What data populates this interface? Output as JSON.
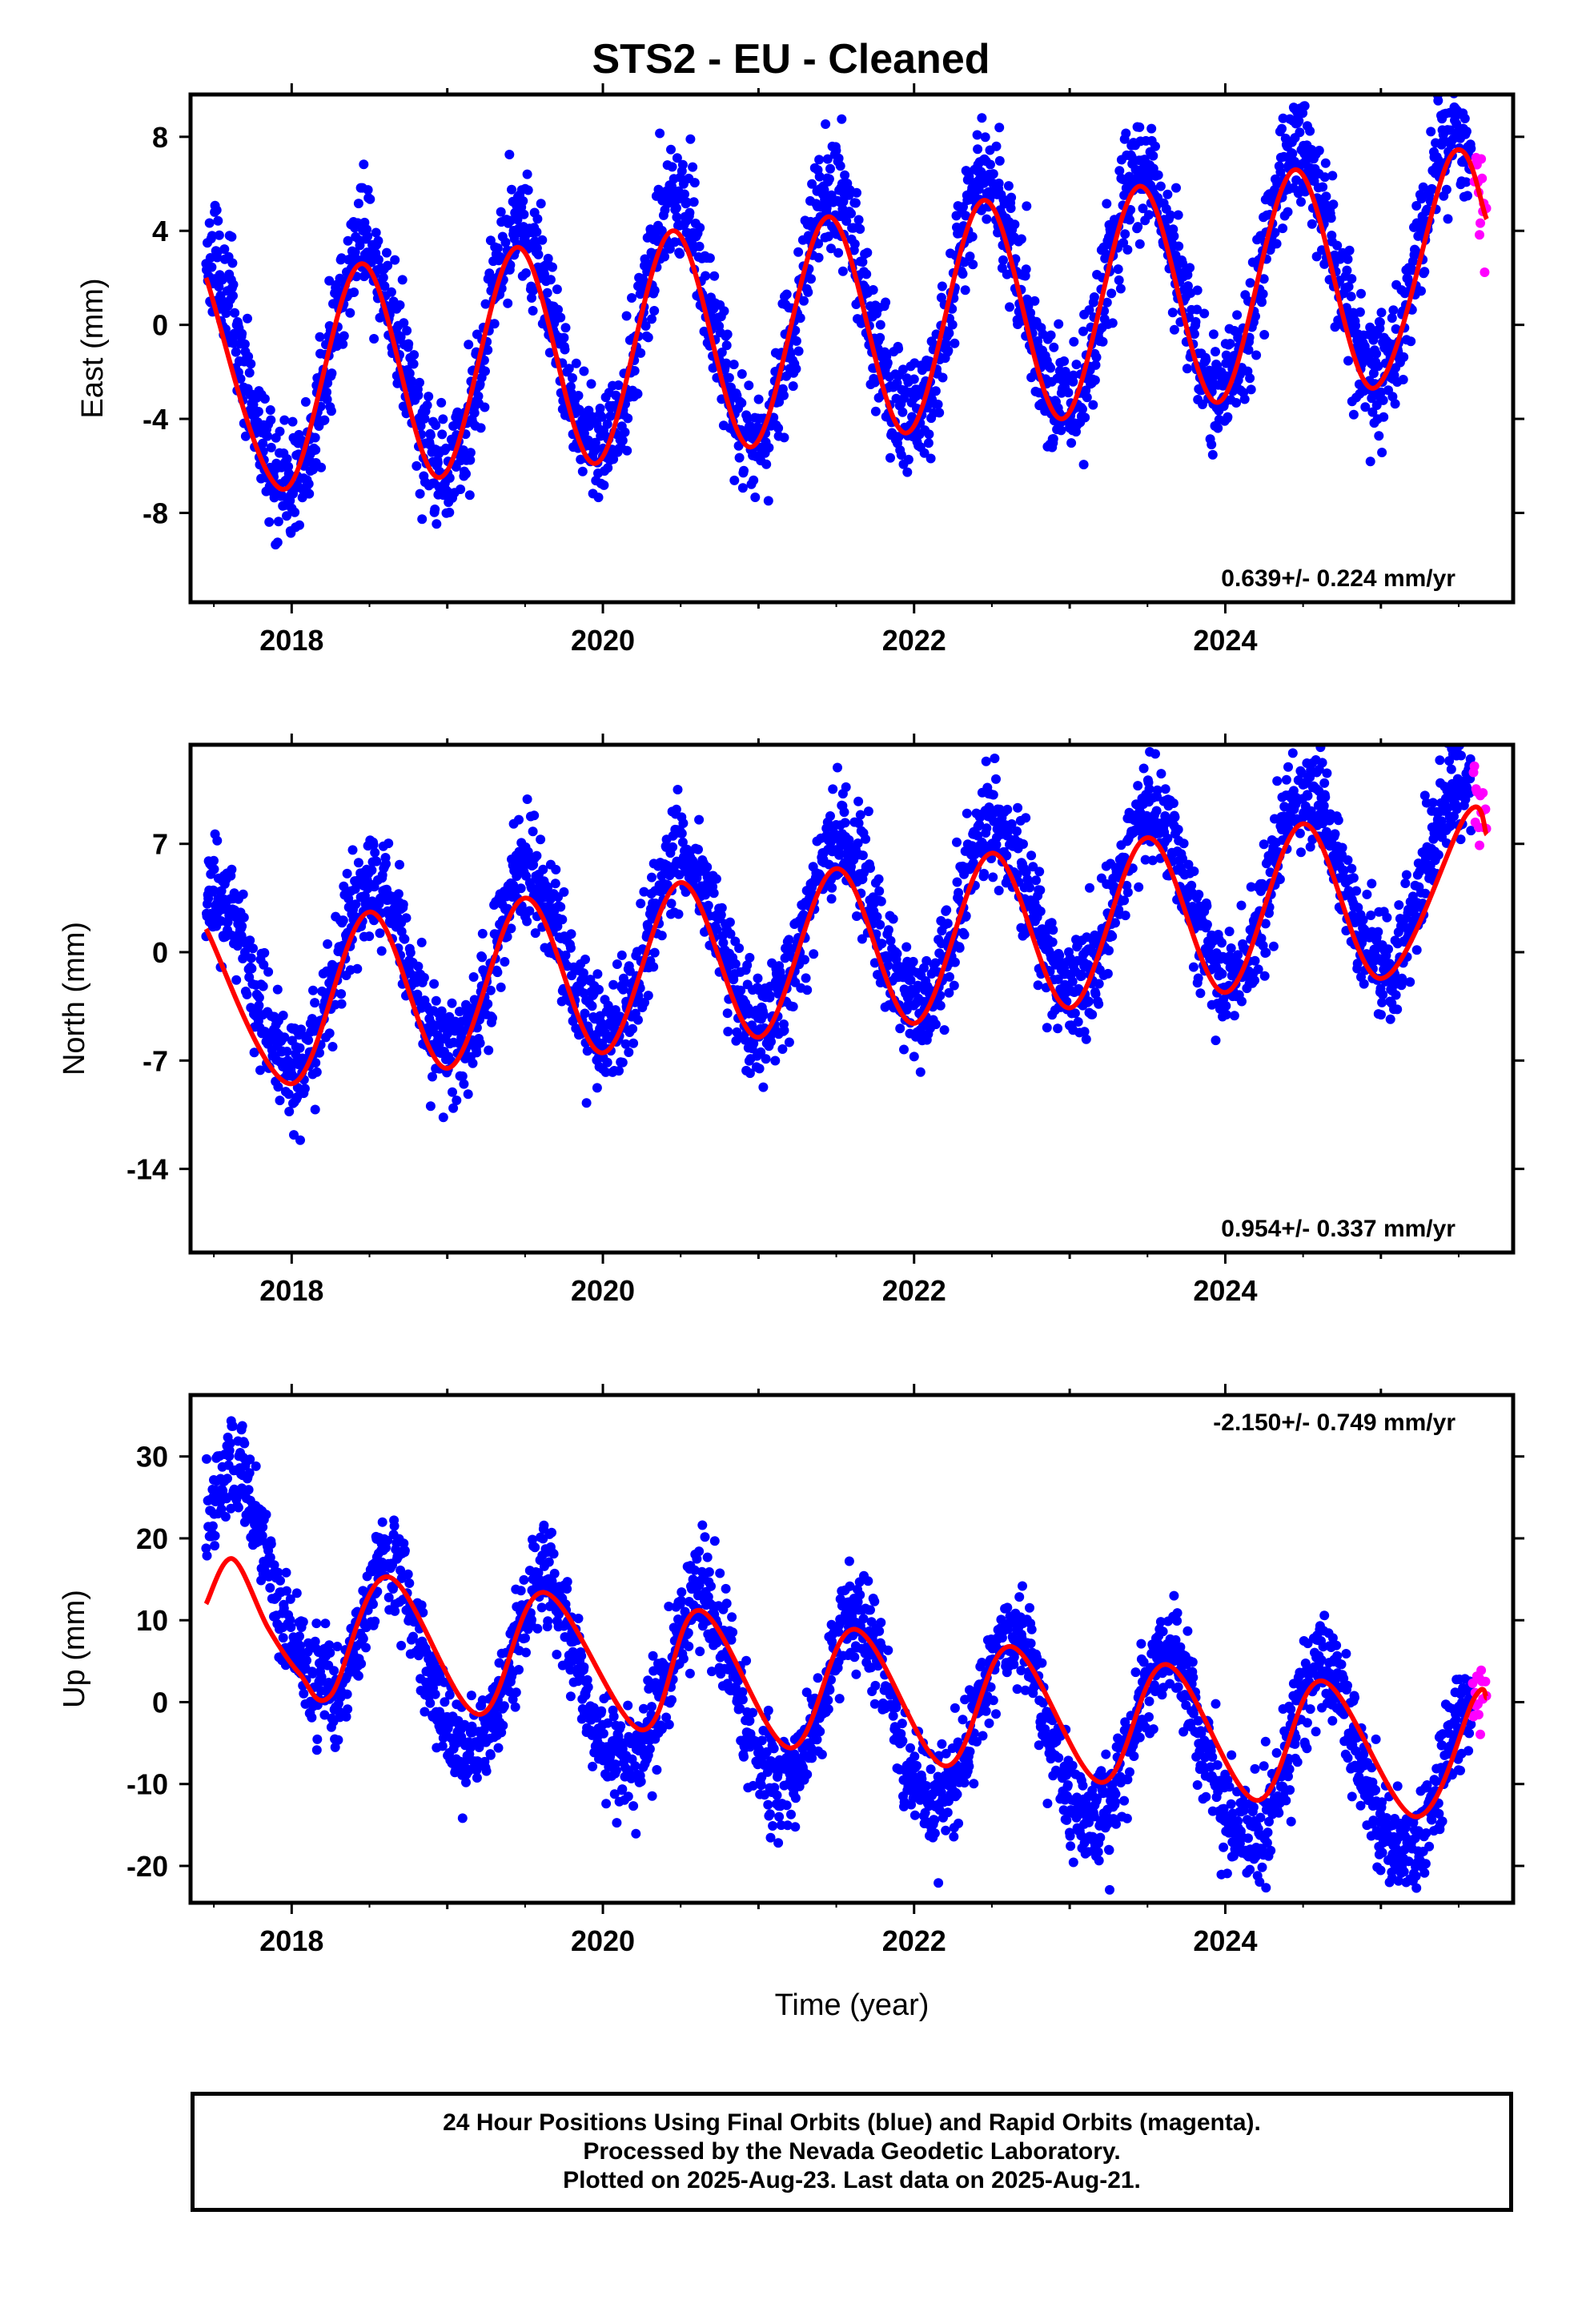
{
  "title": "STS2  - EU - Cleaned",
  "footer": {
    "line1": "24 Hour Positions Using Final Orbits (blue) and Rapid Orbits (magenta).",
    "line2": "Processed by the Nevada Geodetic Laboratory.",
    "line3": "Plotted on 2025-Aug-23. Last data on 2025-Aug-21."
  },
  "colors": {
    "final": "#0000ff",
    "rapid": "#ff00ff",
    "fit": "#ff0000",
    "frame": "#000000"
  },
  "chart_data": [
    {
      "type": "scatter",
      "name": "east",
      "ylabel": "East (mm)",
      "xlabel": "",
      "xlim": [
        2017.35,
        2025.85
      ],
      "ylim": [
        -11.8,
        9.8
      ],
      "xticks": [
        2018,
        2020,
        2022,
        2024
      ],
      "yticks": [
        -8,
        -4,
        0,
        4,
        8
      ],
      "yticklabels": [
        "-8",
        "-4",
        "0",
        "4",
        "8"
      ],
      "rate_text": "0.639+/- 0.224 mm/yr",
      "rate_position": "bottom-right",
      "model": {
        "start": 2017.45,
        "end": 2025.68,
        "offset": -2.25,
        "trend_mm_per_yr": 0.639,
        "amplitude": 5.0,
        "phase_yr": 2017.22,
        "ann2_amp": 0.25,
        "ann2_phase": 2017.3
      },
      "scatter": {
        "final_range": [
          2017.45,
          2025.58
        ],
        "rapid_range": [
          2025.59,
          2025.68
        ],
        "noise_sd": 1.25,
        "seed": 11
      },
      "fit_line": {
        "x": [
          2017.45,
          2017.95,
          2018.45,
          2018.95,
          2019.45,
          2019.95,
          2020.45,
          2020.95,
          2021.45,
          2021.95,
          2022.45,
          2022.95,
          2023.45,
          2023.95,
          2024.45,
          2024.95,
          2025.45,
          2025.68
        ],
        "y": [
          2.0,
          -7.0,
          2.6,
          -6.5,
          3.3,
          -5.9,
          4.0,
          -5.2,
          4.6,
          -4.6,
          5.3,
          -4.0,
          5.9,
          -3.3,
          6.6,
          -2.7,
          7.2,
          4.5
        ]
      }
    },
    {
      "type": "scatter",
      "name": "north",
      "ylabel": "North (mm)",
      "xlabel": "",
      "xlim": [
        2017.35,
        2025.85
      ],
      "ylim": [
        -19.4,
        13.4
      ],
      "xticks": [
        2018,
        2020,
        2022,
        2024
      ],
      "yticks": [
        -14,
        -7,
        0,
        7
      ],
      "yticklabels": [
        "-14",
        "-7",
        "0",
        "7"
      ],
      "rate_text": "0.954+/- 0.337 mm/yr",
      "rate_position": "bottom-right",
      "model": {
        "start": 2017.45,
        "end": 2025.68,
        "offset": -2.5,
        "trend_mm_per_yr": 0.954,
        "amplitude": 5.6,
        "phase_yr": 2017.27,
        "ann2_amp": 0.35,
        "ann2_phase": 2017.35
      },
      "scatter": {
        "final_range": [
          2017.45,
          2025.58
        ],
        "rapid_range": [
          2025.59,
          2025.68
        ],
        "noise_sd": 1.7,
        "seed": 23
      },
      "fit_line": {
        "x": [
          2017.45,
          2018.0,
          2018.5,
          2019.0,
          2019.5,
          2020.0,
          2020.5,
          2021.0,
          2021.5,
          2022.0,
          2022.5,
          2023.0,
          2023.5,
          2024.0,
          2024.5,
          2025.0,
          2025.55,
          2025.68
        ],
        "y": [
          1.5,
          -8.5,
          2.6,
          -7.5,
          3.5,
          -6.5,
          4.5,
          -5.5,
          5.4,
          -4.6,
          6.4,
          -3.6,
          7.4,
          -2.6,
          8.3,
          -1.7,
          8.9,
          7.6
        ]
      }
    },
    {
      "type": "scatter",
      "name": "up",
      "ylabel": "Up (mm)",
      "xlabel": "Time (year)",
      "xlim": [
        2017.35,
        2025.85
      ],
      "ylim": [
        -24.5,
        37.5
      ],
      "xticks": [
        2018,
        2020,
        2022,
        2024
      ],
      "yticks": [
        -20,
        -10,
        0,
        10,
        20,
        30
      ],
      "yticklabels": [
        "-20",
        "-10",
        "0",
        "10",
        "20",
        "30"
      ],
      "rate_text": "-2.150+/- 0.749 mm/yr",
      "rate_position": "top-right",
      "model": {
        "start": 2017.45,
        "end": 2025.68,
        "offset": 8.0,
        "trend_mm_per_yr": -2.15,
        "amplitude": 11.0,
        "phase_yr": 2017.38,
        "ann2_amp": 1.0,
        "ann2_phase": 2017.5
      },
      "scatter": {
        "final_range": [
          2017.45,
          2025.58
        ],
        "rapid_range": [
          2025.59,
          2025.68
        ],
        "noise_sd": 3.0,
        "seed": 37,
        "early_offset": {
          "until": 2018.25,
          "add": 10.0
        }
      },
      "fit_line": {
        "x": [
          2017.45,
          2017.62,
          2017.85,
          2018.05,
          2018.25,
          2018.62,
          2019.2,
          2019.62,
          2020.25,
          2020.62,
          2021.2,
          2021.62,
          2022.2,
          2022.62,
          2023.2,
          2023.62,
          2024.2,
          2024.62,
          2025.22,
          2025.6,
          2025.68
        ],
        "y": [
          12.0,
          17.5,
          9.0,
          3.5,
          0.8,
          15.3,
          -1.5,
          13.4,
          -3.4,
          11.2,
          -5.6,
          8.9,
          -7.8,
          6.8,
          -9.8,
          4.6,
          -12.0,
          2.6,
          -14.0,
          0.5,
          0.5
        ]
      }
    }
  ]
}
